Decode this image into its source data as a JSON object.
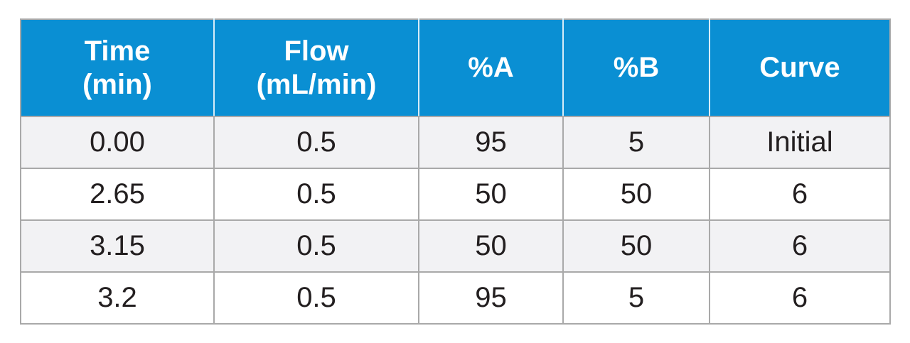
{
  "table": {
    "headers": [
      [
        "Time",
        "(min)"
      ],
      [
        "Flow",
        "(mL/min)"
      ],
      [
        "%A"
      ],
      [
        "%B"
      ],
      [
        "Curve"
      ]
    ],
    "rows": [
      [
        "0.00",
        "0.5",
        "95",
        "5",
        "Initial"
      ],
      [
        "2.65",
        "0.5",
        "50",
        "50",
        "6"
      ],
      [
        "3.15",
        "0.5",
        "50",
        "50",
        "6"
      ],
      [
        "3.2",
        "0.5",
        "95",
        "5",
        "6"
      ]
    ],
    "colors": {
      "header_bg": "#0a8fd3",
      "header_text": "#ffffff",
      "shaded_row_bg": "#f2f2f4",
      "border": "#a9a9a9"
    }
  }
}
